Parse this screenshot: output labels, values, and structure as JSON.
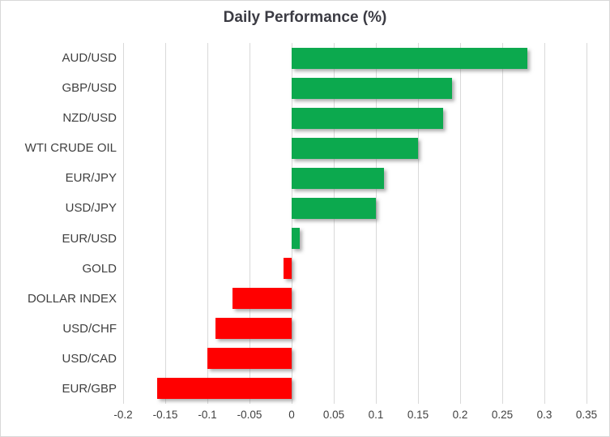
{
  "chart_data": {
    "type": "bar",
    "orientation": "horizontal",
    "title": "Daily Performance (%)",
    "categories": [
      "AUD/USD",
      "GBP/USD",
      "NZD/USD",
      "WTI CRUDE OIL",
      "EUR/JPY",
      "USD/JPY",
      "EUR/USD",
      "GOLD",
      "DOLLAR INDEX",
      "USD/CHF",
      "USD/CAD",
      "EUR/GBP"
    ],
    "values": [
      0.28,
      0.19,
      0.18,
      0.15,
      0.11,
      0.1,
      0.01,
      -0.01,
      -0.07,
      -0.09,
      -0.1,
      -0.16
    ],
    "xlim": [
      -0.2,
      0.35
    ],
    "x_tick_labels": [
      "-0.2",
      "-0.15",
      "-0.1",
      "-0.05",
      "0",
      "0.05",
      "0.1",
      "0.15",
      "0.2",
      "0.25",
      "0.3",
      "0.35"
    ],
    "grid": true,
    "legend": false,
    "colors": {
      "positive_bar": "#0CA94E",
      "negative_bar": "#FF0000",
      "gridline": "#D9D9D9",
      "axis_text": "#404040",
      "title_text": "#3B3B43",
      "chart_border": "#D8D8D8",
      "background": "#FFFFFF"
    }
  }
}
